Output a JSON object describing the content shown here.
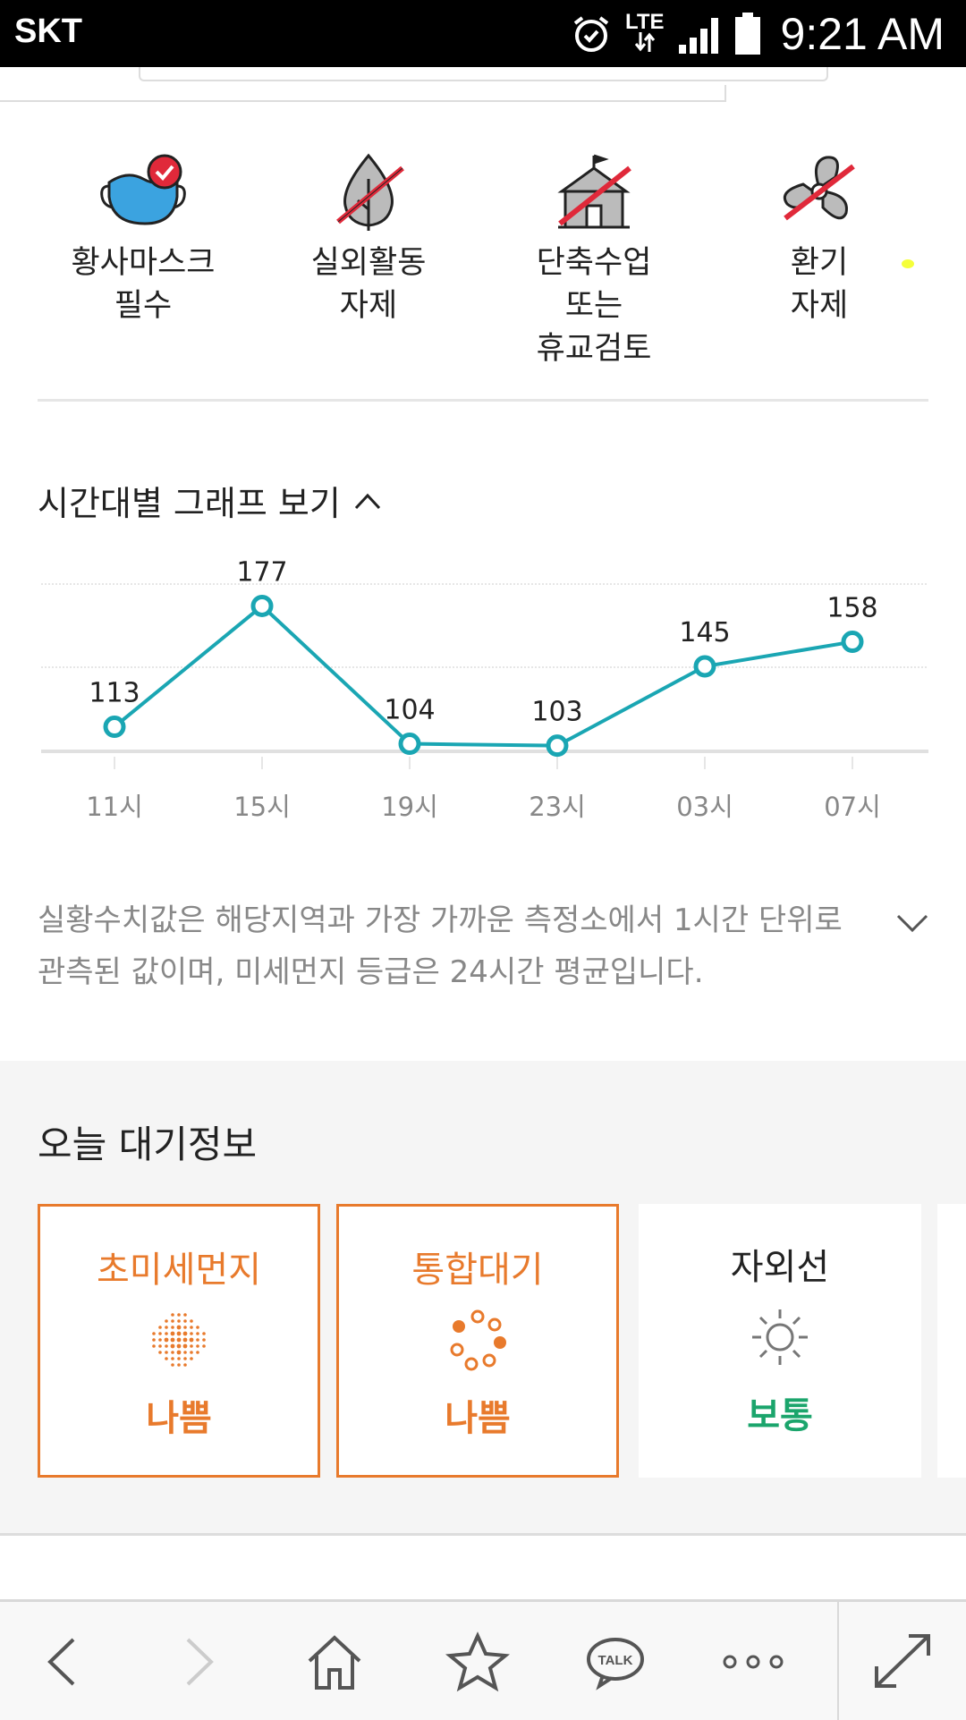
{
  "status_bar": {
    "carrier": "SKT",
    "network": "LTE",
    "time": "9:21 AM"
  },
  "actions": [
    {
      "label": "황사마스크\n필수",
      "icon": "mask-check-icon"
    },
    {
      "label": "실외활동\n자제",
      "icon": "no-outdoor-leaf-icon"
    },
    {
      "label": "단축수업\n또는\n휴교검토",
      "icon": "no-school-icon"
    },
    {
      "label": "환기\n자제",
      "icon": "no-fan-icon"
    }
  ],
  "graph": {
    "toggle_label": "시간대별 그래프 보기"
  },
  "chart_data": {
    "type": "line",
    "categories": [
      "11시",
      "15시",
      "19시",
      "23시",
      "03시",
      "07시"
    ],
    "series": [
      {
        "values": [
          113,
          177,
          104,
          103,
          145,
          158
        ]
      }
    ],
    "ylim": [
      100,
      190
    ],
    "grid": true,
    "line_color": "#1aa6b3"
  },
  "note": "실황수치값은 해당지역과 가장 가까운 측정소에서 1시간 단위로 관측된 값이며, 미세먼지 등급은 24시간 평균입니다.",
  "today": {
    "title": "오늘 대기정보",
    "cards": [
      {
        "title": "초미세먼지",
        "value": "나쁨",
        "icon": "fine-dust-icon",
        "title_color": "#e87a2c",
        "value_color": "#e87a2c"
      },
      {
        "title": "통합대기",
        "value": "나쁨",
        "icon": "air-quality-icon",
        "title_color": "#e87a2c",
        "value_color": "#e87a2c"
      },
      {
        "title": "자외선",
        "value": "보통",
        "icon": "sun-icon",
        "title_color": "#222222",
        "value_color": "#1ba56c"
      }
    ]
  },
  "nav": {
    "talk_label": "TALK"
  }
}
